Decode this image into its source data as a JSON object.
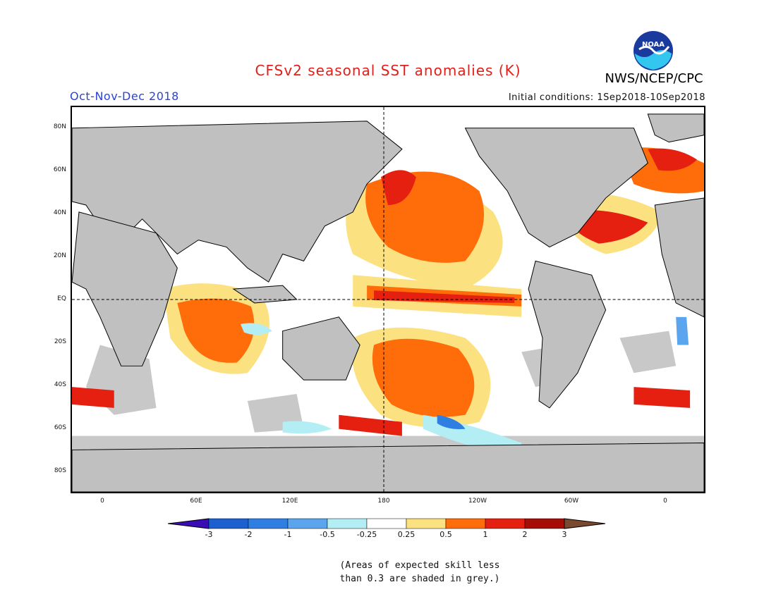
{
  "title": "CFSv2 seasonal SST anomalies (K)",
  "agency": "NWS/NCEP/CPC",
  "logo_text": "NOAA",
  "period": "Oct-Nov-Dec 2018",
  "initial_conditions": "Initial conditions: 1Sep2018-10Sep2018",
  "map": {
    "lat_labels": [
      "80N",
      "60N",
      "40N",
      "20N",
      "EQ",
      "20S",
      "40S",
      "60S",
      "80S"
    ],
    "lon_labels": [
      "0",
      "60E",
      "120E",
      "180",
      "120W",
      "60W",
      "0"
    ],
    "colors": {
      "land": "#c0c0c0",
      "ocean_neutral": "#ffffff",
      "low_skill_grey": "#c8c8c8"
    }
  },
  "colorbar": {
    "tick_labels": [
      "-3",
      "-2",
      "-1",
      "-0.5",
      "-0.25",
      "0.25",
      "0.5",
      "1",
      "2",
      "3"
    ],
    "colors": [
      "#3a0db4",
      "#1c5fcf",
      "#2f7fe3",
      "#5aa5ee",
      "#b4eef5",
      "#ffffff",
      "#fce181",
      "#ff6c0a",
      "#e52010",
      "#a50d06",
      "#7b4a2e"
    ]
  },
  "footnote": {
    "line1": "(Areas of expected skill less",
    "line2": "than 0.3 are shaded in grey.)"
  }
}
